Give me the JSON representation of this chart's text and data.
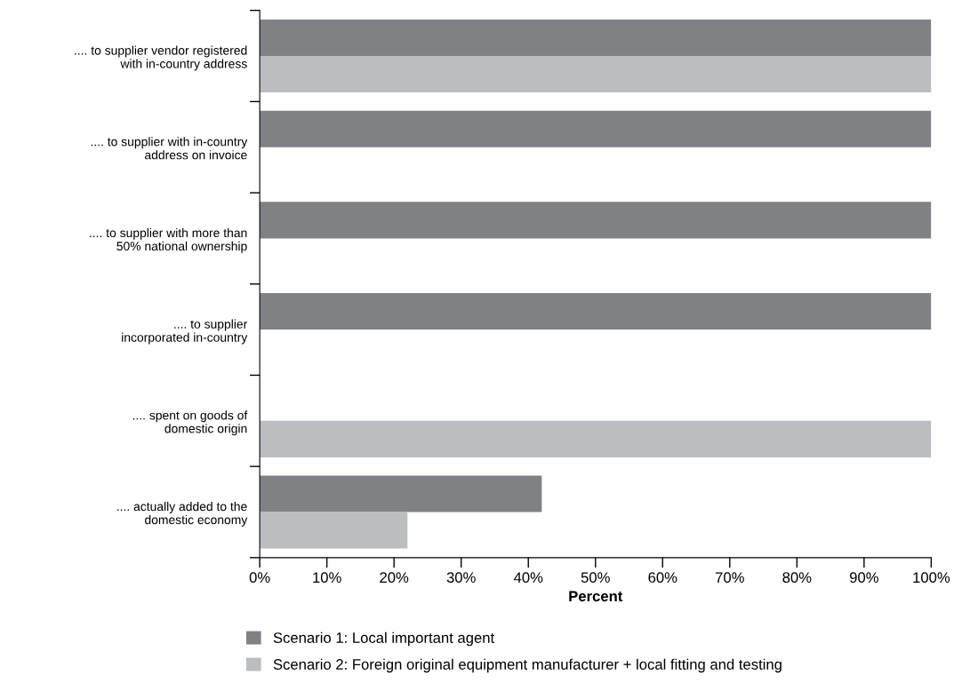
{
  "chart_data": {
    "type": "bar",
    "orientation": "horizontal",
    "xlabel": "Percent",
    "categories": [
      ".... to supplier vendor registered\nwith in-country address",
      ".... to supplier with in-country\naddress on invoice",
      ".... to supplier with more than\n50% national ownership",
      ".... to supplier\nincorporated in-country",
      ".... spent on goods of\ndomestic origin",
      ".... actually added to the\ndomestic economy"
    ],
    "series": [
      {
        "name": "Scenario 1: Local important agent",
        "color": "#808184",
        "values": [
          100,
          100,
          100,
          100,
          null,
          42
        ]
      },
      {
        "name": "Scenario 2: Foreign original equipment manufacturer + local fitting and testing",
        "color": "#bcbdc0",
        "values": [
          100,
          null,
          null,
          null,
          100,
          22
        ]
      }
    ],
    "xlim": [
      0,
      100
    ],
    "xticks": [
      {
        "value": 0,
        "label": "0%"
      },
      {
        "value": 10,
        "label": "10%"
      },
      {
        "value": 20,
        "label": "20%"
      },
      {
        "value": 30,
        "label": "30%"
      },
      {
        "value": 40,
        "label": "40%"
      },
      {
        "value": 50,
        "label": "50%"
      },
      {
        "value": 60,
        "label": "60%"
      },
      {
        "value": 70,
        "label": "70%"
      },
      {
        "value": 80,
        "label": "80%"
      },
      {
        "value": 90,
        "label": "90%"
      },
      {
        "value": 100,
        "label": "100%"
      }
    ],
    "grid": false,
    "legend": "bottom"
  }
}
